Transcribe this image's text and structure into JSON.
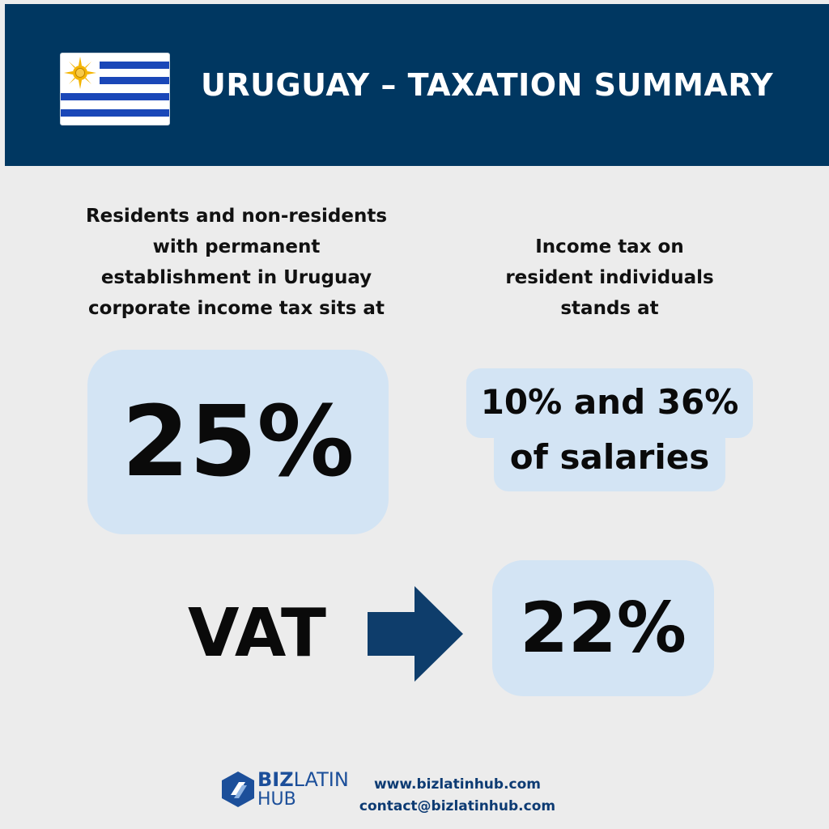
{
  "header": {
    "title": "URUGUAY – TAXATION SUMMARY",
    "flag_icon": "uruguay-flag-icon"
  },
  "corporate": {
    "description_lines": [
      "Residents and non-residents",
      "with permanent",
      "establishment in Uruguay",
      "corporate income tax sits at"
    ],
    "rate": "25%"
  },
  "individual": {
    "description_lines": [
      "Income tax on",
      "resident individuals",
      "stands at"
    ],
    "rate_line1": "10% and 36%",
    "rate_line2": "of salaries"
  },
  "vat": {
    "label": "VAT",
    "arrow_icon": "arrow-right-icon",
    "rate": "22%"
  },
  "footer": {
    "logo_icon": "biz-latin-hub-logo-icon",
    "logo_biz": "BIZ",
    "logo_latin": "LATIN",
    "logo_hub": "HUB",
    "website": "www.bizlatinhub.com",
    "email": "contact@bizlatinhub.com"
  },
  "colors": {
    "header_bg": "#003761",
    "page_bg": "#ececec",
    "pill_bg": "#d3e4f4",
    "arrow": "#0e3d6b",
    "brand_blue": "#1c4f9a"
  }
}
